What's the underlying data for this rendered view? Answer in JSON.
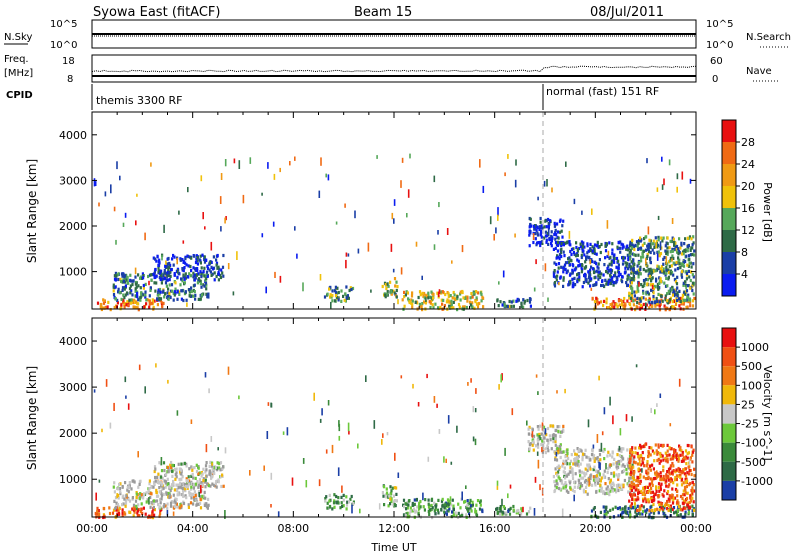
{
  "header": {
    "station": "Syowa East (fitACF)",
    "beam": "Beam 15",
    "date": "08/Jul/2011"
  },
  "top_panels": {
    "nsky_label": "N.Sky",
    "nsky_ticks": [
      "10^5",
      "10^0"
    ],
    "nsearch_label": "N.Search",
    "nsearch_ticks": [
      "10^5",
      "10^0"
    ],
    "freq_label_1": "Freq.",
    "freq_label_2": "[MHz]",
    "freq_ticks": [
      "18",
      "8"
    ],
    "nave_label": "Nave",
    "nave_ticks": [
      "60",
      "0"
    ],
    "cpid_label": "CPID",
    "cpid_modes": [
      {
        "name": "themis 3300 RF",
        "start_hour": 0
      },
      {
        "name": "normal (fast) 151 RF",
        "start_hour": 18
      }
    ]
  },
  "colors": {
    "power_scale": [
      "#0a1cf0",
      "#1a3ea6",
      "#2e6a46",
      "#56a85a",
      "#f0c20a",
      "#f09a14",
      "#f06a14",
      "#e81010"
    ],
    "velocity_scale": [
      "#1a3ea6",
      "#2e6a46",
      "#3a8a3a",
      "#6cc83a",
      "#c8c8c8",
      "#f0b80a",
      "#f07814",
      "#f05014",
      "#e81010"
    ],
    "ground_scatter": "#9a9a9a",
    "line": "#000000",
    "mode_change_line": "#aaaaaa"
  },
  "chart_data": [
    {
      "type": "heatmap",
      "name_hidden": true,
      "xlabel": "",
      "ylabel": "Slant Range [km]",
      "x_range_hours": [
        0,
        24
      ],
      "y_range_km": [
        180,
        4500
      ],
      "y_ticks": [
        "1000",
        "2000",
        "3000",
        "4000"
      ],
      "colorbar_label": "Power [dB]",
      "colorbar_ticks": [
        "28",
        "24",
        "20",
        "16",
        "12",
        "8",
        "4"
      ],
      "colorbar_range": [
        0,
        30
      ],
      "regions": [
        {
          "t0": 0.1,
          "t1": 2.8,
          "r0": 200,
          "r1": 420,
          "level": 0.75
        },
        {
          "t0": 0.8,
          "t1": 4.6,
          "r0": 400,
          "r1": 1000,
          "level": 0.3
        },
        {
          "t0": 2.4,
          "t1": 5.2,
          "r0": 850,
          "r1": 1400,
          "level": 0.12
        },
        {
          "t0": 9.2,
          "t1": 10.4,
          "r0": 380,
          "r1": 700,
          "level": 0.35
        },
        {
          "t0": 11.5,
          "t1": 12.1,
          "r0": 450,
          "r1": 900,
          "level": 0.45
        },
        {
          "t0": 12.3,
          "t1": 15.5,
          "r0": 200,
          "r1": 600,
          "level": 0.55
        },
        {
          "t0": 16.0,
          "t1": 17.4,
          "r0": 250,
          "r1": 450,
          "level": 0.3
        },
        {
          "t0": 17.3,
          "t1": 18.7,
          "r0": 1600,
          "r1": 2200,
          "level": 0.08
        },
        {
          "t0": 18.3,
          "t1": 21.5,
          "r0": 700,
          "r1": 1700,
          "level": 0.15
        },
        {
          "t0": 19.8,
          "t1": 23.9,
          "r0": 200,
          "r1": 450,
          "level": 0.75
        },
        {
          "t0": 21.3,
          "t1": 23.9,
          "r0": 350,
          "r1": 1800,
          "level": 0.35
        }
      ]
    },
    {
      "type": "heatmap",
      "xlabel": "Time UT",
      "ylabel": "Slant Range [km]",
      "x_range_hours": [
        0,
        24
      ],
      "x_ticks": [
        "00:00",
        "04:00",
        "08:00",
        "12:00",
        "16:00",
        "20:00",
        "00:00"
      ],
      "y_range_km": [
        180,
        4500
      ],
      "y_ticks": [
        "1000",
        "2000",
        "3000",
        "4000"
      ],
      "colorbar_label": "Velocity [m s^-1]",
      "colorbar_ticks": [
        "1000",
        "500",
        "100",
        "25",
        "-25",
        "-100",
        "-500",
        "-1000"
      ],
      "colorbar_range": [
        -1000,
        1000
      ],
      "regions": [
        {
          "t0": 0.1,
          "t1": 2.8,
          "r0": 200,
          "r1": 420,
          "level": 0.85
        },
        {
          "t0": 0.8,
          "t1": 4.6,
          "r0": 400,
          "r1": 1000,
          "level": 0.55,
          "gs": true
        },
        {
          "t0": 2.4,
          "t1": 5.2,
          "r0": 850,
          "r1": 1400,
          "level": 0.5,
          "gs": true
        },
        {
          "t0": 9.2,
          "t1": 10.4,
          "r0": 380,
          "r1": 700,
          "level": 0.35
        },
        {
          "t0": 11.5,
          "t1": 12.1,
          "r0": 450,
          "r1": 900,
          "level": 0.35
        },
        {
          "t0": 12.3,
          "t1": 15.5,
          "r0": 200,
          "r1": 600,
          "level": 0.3
        },
        {
          "t0": 16.0,
          "t1": 17.4,
          "r0": 250,
          "r1": 450,
          "level": 0.3
        },
        {
          "t0": 17.3,
          "t1": 18.7,
          "r0": 1600,
          "r1": 2200,
          "level": 0.5,
          "gs": true
        },
        {
          "t0": 18.3,
          "t1": 21.5,
          "r0": 700,
          "r1": 1700,
          "level": 0.5,
          "gs": true
        },
        {
          "t0": 19.8,
          "t1": 23.9,
          "r0": 200,
          "r1": 450,
          "level": 0.2
        },
        {
          "t0": 21.3,
          "t1": 23.9,
          "r0": 350,
          "r1": 1800,
          "level": 0.8
        }
      ]
    }
  ]
}
